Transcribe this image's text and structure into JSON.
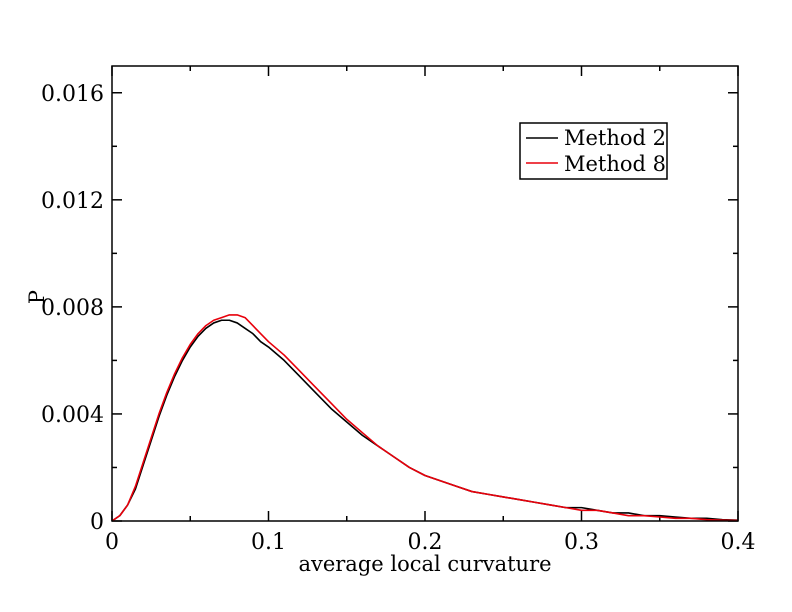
{
  "chart_data": {
    "type": "line",
    "title": "",
    "xlabel": "average local curvature",
    "ylabel": "P",
    "xlim": [
      0,
      0.4
    ],
    "ylim": [
      0,
      0.017
    ],
    "x_ticks": [
      0,
      0.1,
      0.2,
      0.3,
      0.4
    ],
    "x_tick_labels": [
      "0",
      "0.1",
      "0.2",
      "0.3",
      "0.4"
    ],
    "x_minor_step": 0.05,
    "y_ticks": [
      0,
      0.004,
      0.008,
      0.012,
      0.016
    ],
    "y_tick_labels": [
      "0",
      "0.004",
      "0.008",
      "0.012",
      "0.016"
    ],
    "y_minor_step": 0.002,
    "grid": false,
    "legend": {
      "placement": "top-right"
    },
    "series": [
      {
        "name": "Method 2",
        "color": "#000000",
        "x": [
          0,
          0.005,
          0.01,
          0.015,
          0.02,
          0.025,
          0.03,
          0.035,
          0.04,
          0.045,
          0.05,
          0.055,
          0.06,
          0.065,
          0.07,
          0.075,
          0.08,
          0.085,
          0.09,
          0.095,
          0.1,
          0.11,
          0.12,
          0.13,
          0.14,
          0.15,
          0.16,
          0.17,
          0.18,
          0.19,
          0.2,
          0.21,
          0.22,
          0.23,
          0.24,
          0.25,
          0.26,
          0.27,
          0.28,
          0.29,
          0.3,
          0.31,
          0.32,
          0.33,
          0.34,
          0.35,
          0.36,
          0.37,
          0.38,
          0.39,
          0.4
        ],
        "y": [
          0,
          0.0002,
          0.0006,
          0.0012,
          0.0021,
          0.003,
          0.0039,
          0.0047,
          0.0054,
          0.006,
          0.0065,
          0.0069,
          0.0072,
          0.0074,
          0.0075,
          0.0075,
          0.0074,
          0.0072,
          0.007,
          0.0067,
          0.0065,
          0.006,
          0.0054,
          0.0048,
          0.0042,
          0.0037,
          0.0032,
          0.0028,
          0.0024,
          0.002,
          0.0017,
          0.0015,
          0.0013,
          0.0011,
          0.001,
          0.0009,
          0.0008,
          0.0007,
          0.0006,
          0.0005,
          0.0005,
          0.0004,
          0.0003,
          0.0003,
          0.0002,
          0.0002,
          0.00015,
          0.0001,
          0.0001,
          5e-05,
          3e-05
        ]
      },
      {
        "name": "Method 8",
        "color": "#e8000b",
        "x": [
          0,
          0.005,
          0.01,
          0.015,
          0.02,
          0.025,
          0.03,
          0.035,
          0.04,
          0.045,
          0.05,
          0.055,
          0.06,
          0.065,
          0.07,
          0.075,
          0.08,
          0.085,
          0.09,
          0.095,
          0.1,
          0.11,
          0.12,
          0.13,
          0.14,
          0.15,
          0.16,
          0.17,
          0.18,
          0.19,
          0.2,
          0.21,
          0.22,
          0.23,
          0.24,
          0.25,
          0.26,
          0.27,
          0.28,
          0.29,
          0.3,
          0.31,
          0.32,
          0.33,
          0.34,
          0.35,
          0.36,
          0.37,
          0.38,
          0.39,
          0.4
        ],
        "y": [
          0,
          0.0002,
          0.0006,
          0.0013,
          0.0022,
          0.0031,
          0.004,
          0.0048,
          0.0055,
          0.0061,
          0.0066,
          0.007,
          0.0073,
          0.0075,
          0.0076,
          0.0077,
          0.0077,
          0.0076,
          0.0073,
          0.007,
          0.0067,
          0.0062,
          0.0056,
          0.005,
          0.0044,
          0.0038,
          0.0033,
          0.0028,
          0.0024,
          0.002,
          0.0017,
          0.0015,
          0.0013,
          0.0011,
          0.001,
          0.0009,
          0.0008,
          0.0007,
          0.0006,
          0.0005,
          0.0004,
          0.0004,
          0.0003,
          0.0002,
          0.0002,
          0.00015,
          0.0001,
          0.0001,
          5e-05,
          3e-05,
          2e-05
        ]
      }
    ]
  }
}
